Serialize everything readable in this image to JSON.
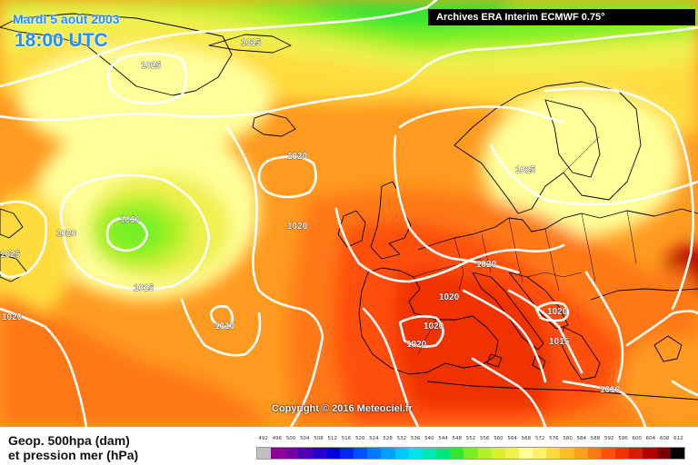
{
  "header": {
    "date": "Mardi 5 août 2003",
    "time": "18:00 UTC",
    "source": "Archives ERA Interim ECMWF 0.75°"
  },
  "map": {
    "copyright": "Copyright © 2016 Meteociel.fr",
    "pressure_labels": [
      "1015",
      "1025",
      "1020",
      "1010",
      "1020",
      "1025",
      "1020",
      "1020",
      "1015",
      "1025",
      "1020",
      "1010",
      "1020",
      "1020",
      "1020",
      "1020",
      "1020",
      "1015",
      "1010"
    ]
  },
  "legend": {
    "title_line1": "Geop. 500hpa (dam)",
    "title_line2": "et pression mer (hPa)",
    "scale_values": [
      "492",
      "496",
      "500",
      "504",
      "508",
      "512",
      "516",
      "520",
      "524",
      "528",
      "532",
      "536",
      "540",
      "544",
      "548",
      "552",
      "556",
      "560",
      "564",
      "568",
      "572",
      "576",
      "580",
      "584",
      "588",
      "592",
      "596",
      "600",
      "604",
      "608",
      "612"
    ],
    "scale_colors": [
      "#c0c0c0",
      "#8c0096",
      "#7800a0",
      "#5000b4",
      "#2800c8",
      "#0000dc",
      "#0028f0",
      "#0050ff",
      "#0078ff",
      "#00a0ff",
      "#00c8ff",
      "#00e6e6",
      "#00e6b4",
      "#00e678",
      "#32e632",
      "#78f028",
      "#b4f028",
      "#dcf028",
      "#f0f050",
      "#ffff9a",
      "#fff06e",
      "#ffdc3c",
      "#ffbe28",
      "#ffa01e",
      "#ff7814",
      "#ff500a",
      "#f03200",
      "#d21e00",
      "#b40000",
      "#780000",
      "#000000"
    ]
  }
}
